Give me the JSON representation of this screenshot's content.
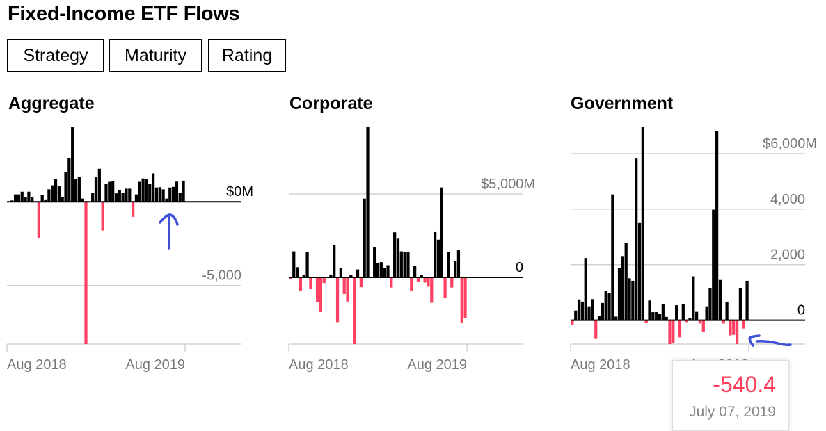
{
  "title": "Fixed-Income ETF Flows",
  "tabs": [
    {
      "label": "Strategy",
      "active": true
    },
    {
      "label": "Maturity",
      "active": false
    },
    {
      "label": "Rating",
      "active": false
    }
  ],
  "colors": {
    "positive": "#000000",
    "negative": "#ff4062",
    "grid": "#d3d3d3",
    "axis_label": "#777777",
    "annotation": "#3f4fd6"
  },
  "tooltip": {
    "value": "-540.4",
    "date": "July 07, 2019"
  },
  "chart_data": [
    {
      "type": "bar",
      "title": "Aggregate",
      "unit": "$M",
      "ylim": [
        -8500,
        4450
      ],
      "x_tick_labels": [
        "Aug 2018",
        "Aug 2019"
      ],
      "y_ticks": [
        {
          "value": 0,
          "label": "$0M"
        },
        {
          "value": -5000,
          "label": "-5,000"
        }
      ],
      "values": [
        30,
        80,
        440,
        440,
        600,
        270,
        600,
        270,
        30,
        -2150,
        410,
        140,
        740,
        980,
        1370,
        920,
        300,
        1750,
        2600,
        4460,
        1370,
        1500,
        190,
        -9000,
        20,
        530,
        1460,
        1970,
        -1720,
        1050,
        1190,
        1230,
        500,
        680,
        550,
        780,
        780,
        -900,
        440,
        1190,
        1390,
        1370,
        1050,
        1690,
        850,
        870,
        740,
        190,
        850,
        890,
        1200,
        520,
        1260
      ]
    },
    {
      "type": "bar",
      "title": "Corporate",
      "unit": "$M",
      "ylim": [
        -4000,
        9000
      ],
      "x_tick_labels": [
        "Aug 2018",
        "Aug 2019"
      ],
      "y_ticks": [
        {
          "value": 0,
          "label": "0"
        },
        {
          "value": 5000,
          "label": "$5,000M"
        }
      ],
      "values": [
        -110,
        1560,
        610,
        -820,
        140,
        1510,
        -710,
        20,
        -1480,
        -2080,
        -340,
        0,
        170,
        1960,
        -2680,
        570,
        -1000,
        -1450,
        140,
        -4100,
        475,
        -590,
        4720,
        9000,
        30,
        1790,
        870,
        910,
        570,
        730,
        -610,
        2700,
        2320,
        1560,
        1520,
        1510,
        -820,
        700,
        -280,
        140,
        -310,
        -560,
        -1520,
        2710,
        2260,
        5390,
        -1240,
        1540,
        -610,
        990,
        1650,
        -2710,
        -2430
      ]
    },
    {
      "type": "bar",
      "title": "Government",
      "unit": "$M",
      "ylim": [
        -860,
        6950
      ],
      "x_tick_labels": [
        "Aug 2018",
        "Aug 2019"
      ],
      "y_ticks": [
        {
          "value": 0,
          "label": "0"
        },
        {
          "value": 2000,
          "label": "2,000"
        },
        {
          "value": 4000,
          "label": "4,000"
        },
        {
          "value": 6000,
          "label": "$6,000M"
        }
      ],
      "values": [
        -180,
        350,
        750,
        670,
        2240,
        500,
        760,
        -650,
        160,
        620,
        1060,
        970,
        4530,
        130,
        1880,
        2310,
        2770,
        1510,
        1420,
        5820,
        3500,
        7000,
        -110,
        710,
        290,
        290,
        230,
        590,
        120,
        -870,
        -810,
        540,
        -620,
        570,
        -70,
        70,
        1580,
        300,
        -120,
        -420,
        500,
        1150,
        3980,
        6800,
        1450,
        -120,
        650,
        -550,
        -530,
        -870,
        1150,
        -300,
        1420
      ]
    }
  ]
}
